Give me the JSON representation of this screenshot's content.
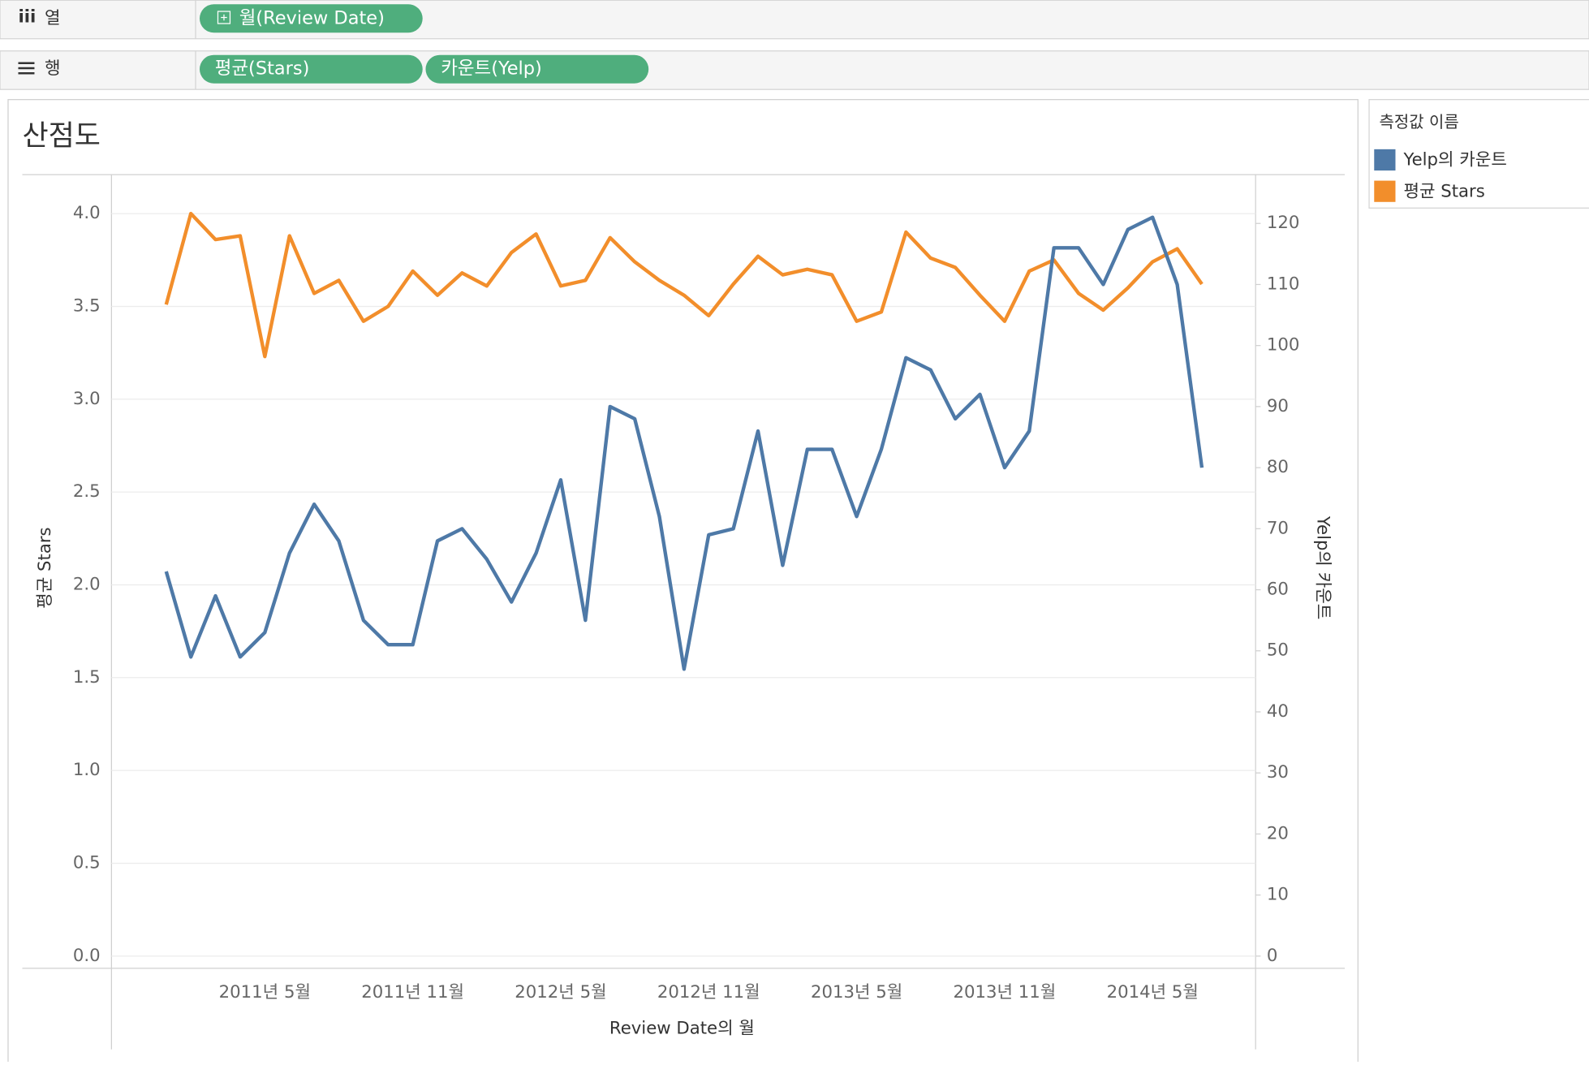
{
  "shelves": {
    "columns": {
      "label": "열",
      "pills": [
        "월(Review Date)"
      ]
    },
    "rows": {
      "label": "행",
      "pills": [
        "평균(Stars)",
        "카운트(Yelp)"
      ]
    }
  },
  "chart_data": {
    "type": "line",
    "title": "산점도",
    "x_label": "Review Date의 월",
    "y_label": "평균 Stars",
    "y2_label": "Yelp의 카운트",
    "legend_title": "측정값 이름",
    "grid": true,
    "categories": [
      null,
      null,
      null,
      null,
      "2011년 5월",
      null,
      null,
      null,
      null,
      null,
      "2011년 11월",
      null,
      null,
      null,
      null,
      null,
      "2012년 5월",
      null,
      null,
      null,
      null,
      null,
      "2012년 11월",
      null,
      null,
      null,
      null,
      null,
      "2013년 5월",
      null,
      null,
      null,
      null,
      null,
      "2013년 11월",
      null,
      null,
      null,
      null,
      null,
      "2014년 5월",
      null,
      null
    ],
    "series": [
      {
        "name": "Yelp의 카운트",
        "color": "#4e79a7",
        "axis": "y2",
        "values": [
          63,
          49,
          59,
          49,
          53,
          66,
          74,
          68,
          55,
          51,
          51,
          68,
          70,
          65,
          58,
          66,
          78,
          55,
          90,
          88,
          72,
          47,
          69,
          70,
          86,
          64,
          83,
          83,
          72,
          83,
          98,
          96,
          88,
          92,
          80,
          86,
          116,
          116,
          110,
          119,
          121,
          110,
          80
        ]
      },
      {
        "name": "평균 Stars",
        "color": "#f28e2b",
        "values": [
          3.51,
          4.0,
          3.86,
          3.88,
          3.23,
          3.88,
          3.57,
          3.64,
          3.42,
          3.5,
          3.69,
          3.56,
          3.68,
          3.61,
          3.79,
          3.89,
          3.61,
          3.64,
          3.87,
          3.74,
          3.64,
          3.56,
          3.45,
          3.62,
          3.77,
          3.67,
          3.7,
          3.67,
          3.42,
          3.47,
          3.9,
          3.76,
          3.71,
          3.56,
          3.42,
          3.69,
          3.75,
          3.57,
          3.48,
          3.6,
          3.74,
          3.81,
          3.62
        ]
      }
    ],
    "ylim": [
      0,
      4.21
    ],
    "yticks": [
      {
        "value": 0,
        "label": "0.0"
      },
      0.5,
      {
        "value": 1,
        "label": "1.0"
      },
      1.5,
      {
        "value": 2,
        "label": "2.0"
      },
      2.5,
      {
        "value": 3,
        "label": "3.0"
      },
      3.5,
      {
        "value": 4,
        "label": "4.0"
      }
    ],
    "y2lim": [
      0,
      128
    ],
    "y2ticks": [
      0,
      10,
      20,
      30,
      40,
      50,
      60,
      70,
      80,
      90,
      100,
      110,
      120
    ]
  }
}
